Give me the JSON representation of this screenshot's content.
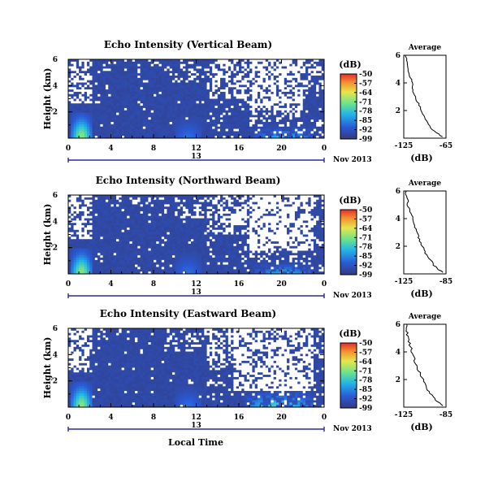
{
  "x_axis": {
    "label": "Local Time",
    "ticks": [
      "0",
      "4",
      "8",
      "12",
      "16",
      "20",
      "0"
    ],
    "day_label": "13",
    "month_label": "Nov 2013"
  },
  "colorbar": {
    "unit": "(dB)",
    "ticks": [
      "-50",
      "-57",
      "-64",
      "-71",
      "-78",
      "-85",
      "-92",
      "-99"
    ],
    "range": [
      -99,
      -50
    ]
  },
  "average_panel": {
    "title": "Average",
    "xlabel": "(dB)",
    "y_ticks": [
      "6",
      "4",
      "2"
    ]
  },
  "colors": {
    "background_echo": "#343a7c",
    "missing": "#ffffff",
    "frame": "#000000",
    "time_bar": "#2a2a9a"
  },
  "chart_data": [
    {
      "type": "heatmap",
      "title": "Echo Intensity (Vertical Beam)",
      "ylabel": "Height (km)",
      "y_ticks": [
        "6",
        "4",
        "2"
      ],
      "ylim": [
        0,
        6
      ],
      "xlim": [
        0,
        24
      ],
      "x_unit": "hours (local time)",
      "value_unit": "dB",
      "value_range": [
        -99,
        -50
      ],
      "dominant_value": -95,
      "features": [
        {
          "kind": "strong_echo",
          "time_range": [
            0.3,
            2.2
          ],
          "height_range": [
            0,
            2.0
          ],
          "peak_value": -70
        },
        {
          "kind": "weak_echo",
          "time_range": [
            10,
            12.5
          ],
          "height_range": [
            0,
            1.5
          ],
          "peak_value": -88
        },
        {
          "kind": "noisy_echo",
          "time_range": [
            17.5,
            23
          ],
          "height_range": [
            0,
            0.8
          ],
          "peak_value": -80
        }
      ],
      "average_profile": {
        "xlim": [
          -125,
          -65
        ],
        "x_ticks": [
          "-125",
          "-65"
        ],
        "ylim": [
          0,
          6
        ],
        "heights": [
          6.0,
          5.5,
          5.0,
          4.5,
          4.0,
          3.5,
          3.0,
          2.5,
          2.0,
          1.5,
          1.0,
          0.5,
          0.1
        ],
        "values": [
          -122,
          -121,
          -119,
          -116,
          -113,
          -112,
          -109,
          -104,
          -100,
          -96,
          -90,
          -82,
          -70
        ]
      }
    },
    {
      "type": "heatmap",
      "title": "Echo Intensity (Northward Beam)",
      "ylabel": "Height (km)",
      "y_ticks": [
        "6",
        "4",
        "2"
      ],
      "ylim": [
        0,
        6
      ],
      "xlim": [
        0,
        24
      ],
      "x_unit": "hours (local time)",
      "value_unit": "dB",
      "value_range": [
        -99,
        -50
      ],
      "dominant_value": -95,
      "features": [
        {
          "kind": "strong_echo",
          "time_range": [
            0.3,
            2.2
          ],
          "height_range": [
            0,
            2.0
          ],
          "peak_value": -70
        },
        {
          "kind": "weak_echo",
          "time_range": [
            10,
            12.5
          ],
          "height_range": [
            0,
            1.5
          ],
          "peak_value": -88
        },
        {
          "kind": "noisy_echo",
          "time_range": [
            17.5,
            23
          ],
          "height_range": [
            0,
            0.8
          ],
          "peak_value": -82
        }
      ],
      "average_profile": {
        "xlim": [
          -125,
          -85
        ],
        "x_ticks": [
          "-125",
          "-85"
        ],
        "ylim": [
          0,
          6
        ],
        "heights": [
          6.0,
          5.5,
          5.0,
          4.5,
          4.0,
          3.5,
          3.0,
          2.5,
          2.0,
          1.5,
          1.0,
          0.5,
          0.1
        ],
        "values": [
          -123,
          -122,
          -121,
          -119,
          -117,
          -115,
          -113,
          -110,
          -107,
          -104,
          -100,
          -95,
          -88
        ]
      }
    },
    {
      "type": "heatmap",
      "title": "Echo Intensity (Eastward Beam)",
      "ylabel": "Height (km)",
      "y_ticks": [
        "6",
        "4",
        "2"
      ],
      "ylim": [
        0,
        6
      ],
      "xlim": [
        0,
        24
      ],
      "x_unit": "hours (local time)",
      "value_unit": "dB",
      "value_range": [
        -99,
        -50
      ],
      "dominant_value": -95,
      "features": [
        {
          "kind": "strong_echo",
          "time_range": [
            0.3,
            2.2
          ],
          "height_range": [
            0,
            2.0
          ],
          "peak_value": -70
        },
        {
          "kind": "weak_echo",
          "time_range": [
            10,
            12.5
          ],
          "height_range": [
            0,
            1.5
          ],
          "peak_value": -88
        },
        {
          "kind": "noisy_echo",
          "time_range": [
            16.5,
            23
          ],
          "height_range": [
            0,
            1.2
          ],
          "peak_value": -76
        }
      ],
      "average_profile": {
        "xlim": [
          -125,
          -85
        ],
        "x_ticks": [
          "-125",
          "-85"
        ],
        "ylim": [
          0,
          6
        ],
        "heights": [
          6.0,
          5.5,
          5.0,
          4.5,
          4.0,
          3.5,
          3.0,
          2.5,
          2.0,
          1.5,
          1.0,
          0.5,
          0.1
        ],
        "values": [
          -123,
          -122,
          -121,
          -119,
          -117,
          -115,
          -113,
          -110,
          -107,
          -104,
          -100,
          -95,
          -88
        ]
      }
    }
  ]
}
